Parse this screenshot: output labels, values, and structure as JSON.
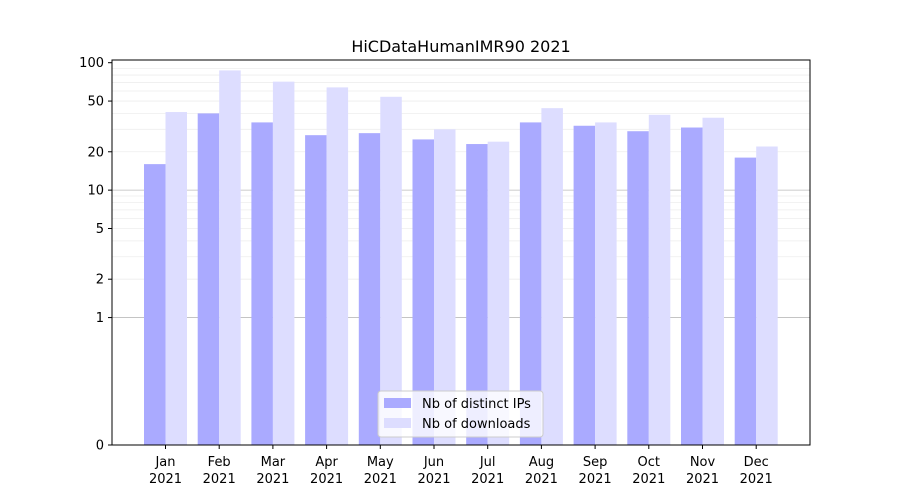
{
  "chart_data": {
    "type": "bar",
    "title": "HiCDataHumanIMR90 2021",
    "xlabel": "",
    "ylabel": "",
    "y_scale": "symlog",
    "ylim": [
      0,
      105
    ],
    "y_ticks": [
      0,
      1,
      2,
      5,
      10,
      20,
      50,
      100
    ],
    "y_tick_labels": [
      "0",
      "1",
      "2",
      "5",
      "10",
      "20",
      "50",
      "100"
    ],
    "categories": [
      [
        "Jan",
        "2021"
      ],
      [
        "Feb",
        "2021"
      ],
      [
        "Mar",
        "2021"
      ],
      [
        "Apr",
        "2021"
      ],
      [
        "May",
        "2021"
      ],
      [
        "Jun",
        "2021"
      ],
      [
        "Jul",
        "2021"
      ],
      [
        "Aug",
        "2021"
      ],
      [
        "Sep",
        "2021"
      ],
      [
        "Oct",
        "2021"
      ],
      [
        "Nov",
        "2021"
      ],
      [
        "Dec",
        "2021"
      ]
    ],
    "series": [
      {
        "name": "Nb of distinct IPs",
        "color": "#aaaaff",
        "values": [
          16,
          40,
          34,
          27,
          28,
          25,
          23,
          34,
          32,
          29,
          31,
          18
        ]
      },
      {
        "name": "Nb of downloads",
        "color": "#ddddff",
        "values": [
          41,
          87,
          71,
          64,
          54,
          30,
          24,
          44,
          34,
          39,
          37,
          22
        ]
      }
    ],
    "grid": true,
    "legend_position": "lower-center"
  }
}
